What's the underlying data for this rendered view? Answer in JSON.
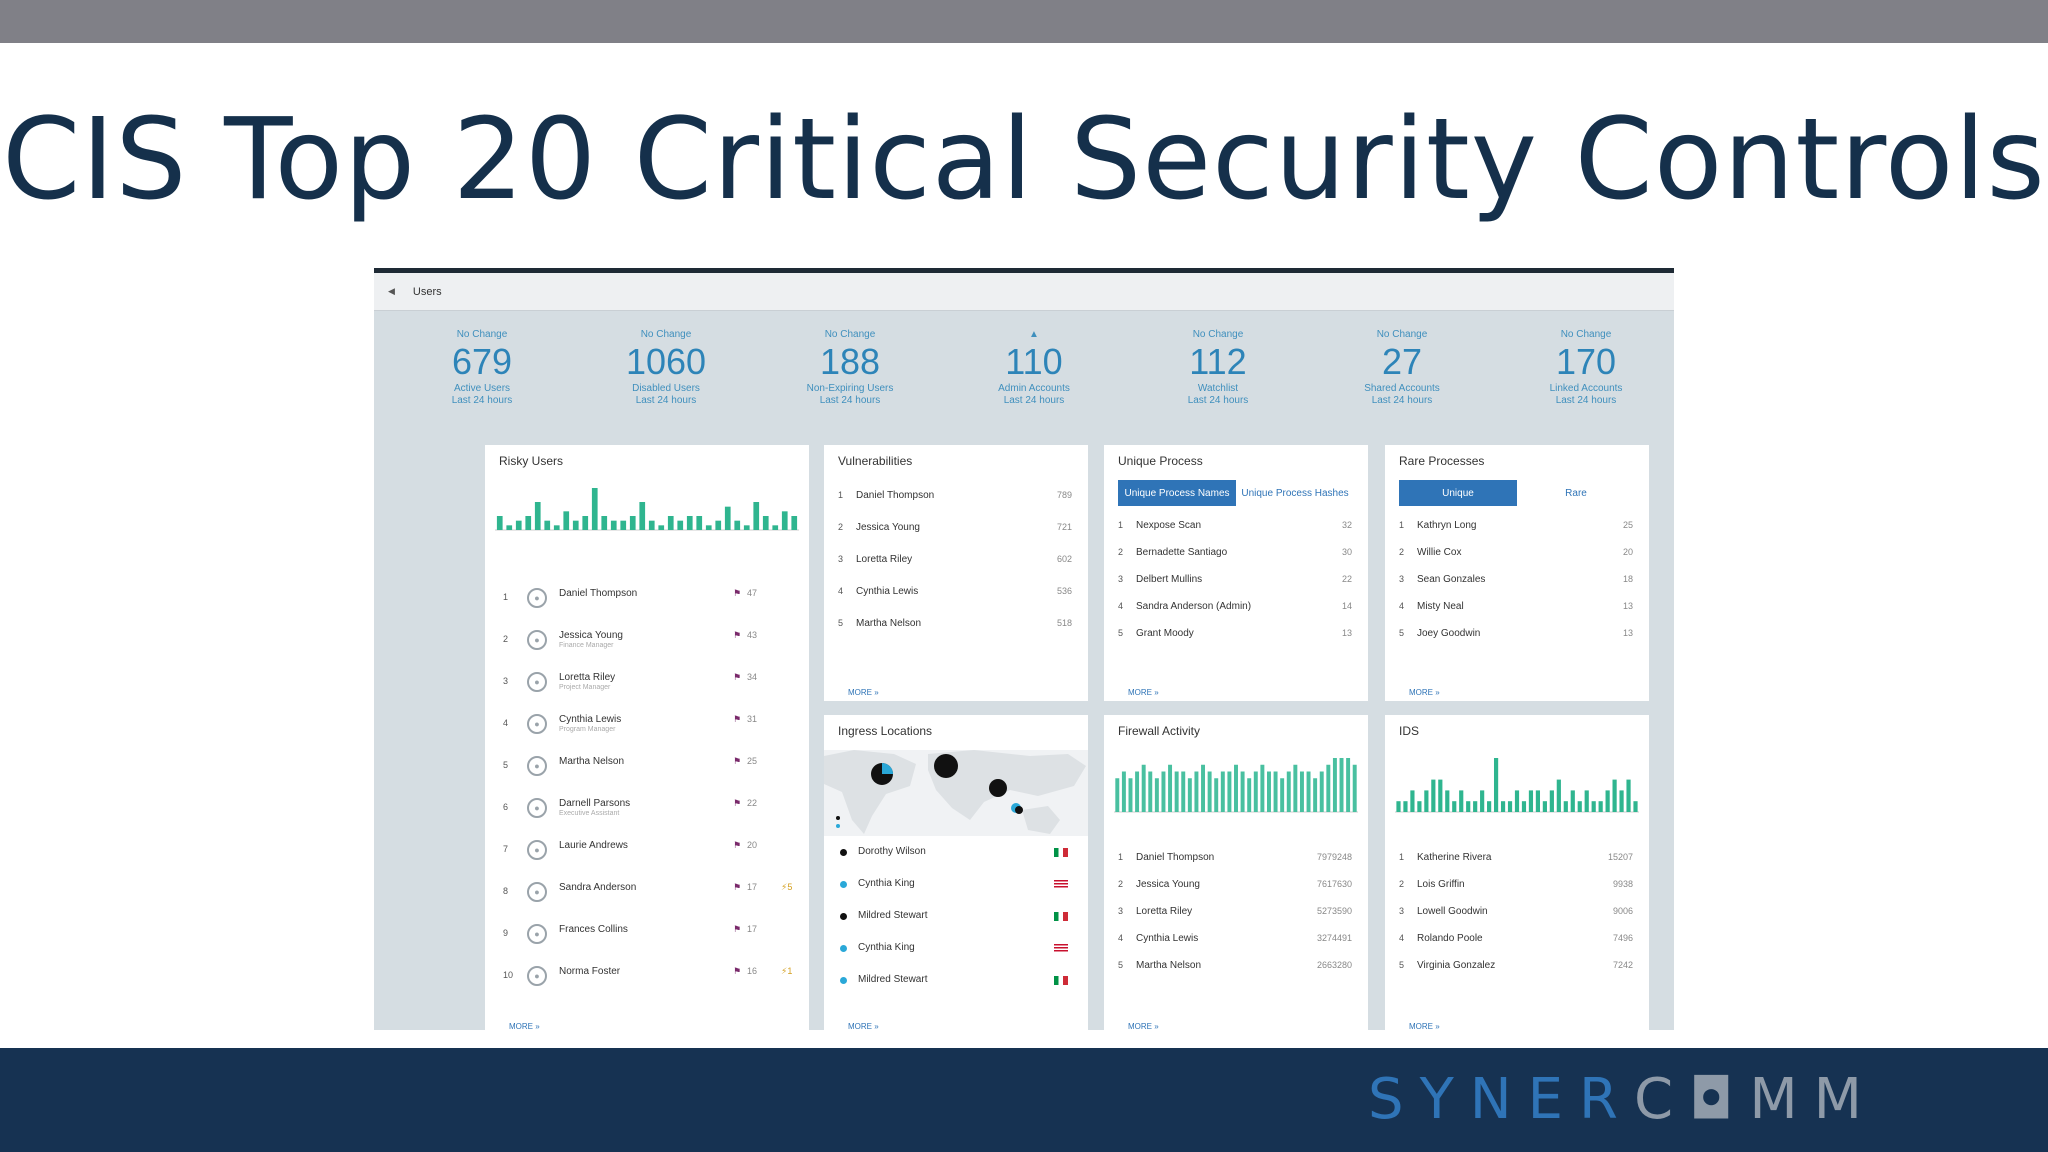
{
  "slide": {
    "title": "CIS Top 20 Critical Security Controls",
    "logo_part_a": "SYNER",
    "logo_part_b": "C◘MM"
  },
  "dashboard": {
    "header": {
      "back_icon": "chevron-left-icon",
      "title": "Users"
    },
    "stats": [
      {
        "change": "No Change",
        "value": "679",
        "label1": "Active Users",
        "label2": "Last 24 hours"
      },
      {
        "change": "No Change",
        "value": "1060",
        "label1": "Disabled Users",
        "label2": "Last 24 hours"
      },
      {
        "change": "No Change",
        "value": "188",
        "label1": "Non-Expiring Users",
        "label2": "Last 24 hours"
      },
      {
        "change": "▲",
        "value": "110",
        "label1": "Admin Accounts",
        "label2": "Last 24 hours"
      },
      {
        "change": "No Change",
        "value": "112",
        "label1": "Watchlist",
        "label2": "Last 24 hours"
      },
      {
        "change": "No Change",
        "value": "27",
        "label1": "Shared Accounts",
        "label2": "Last 24 hours"
      },
      {
        "change": "No Change",
        "value": "170",
        "label1": "Linked Accounts",
        "label2": "Last 24 hours"
      }
    ],
    "risky_users": {
      "title": "Risky Users",
      "more": "MORE »",
      "chart_values": [
        3,
        1,
        2,
        3,
        6,
        2,
        1,
        4,
        2,
        3,
        9,
        3,
        2,
        2,
        3,
        6,
        2,
        1,
        3,
        2,
        3,
        3,
        1,
        2,
        5,
        2,
        1,
        6,
        3,
        1,
        4,
        3
      ],
      "rows": [
        {
          "num": "1",
          "name": "Daniel Thompson",
          "score": "47",
          "bolt": ""
        },
        {
          "num": "2",
          "name": "Jessica Young",
          "sub": "Finance Manager",
          "score": "43",
          "bolt": ""
        },
        {
          "num": "3",
          "name": "Loretta Riley",
          "sub": "Project Manager",
          "score": "34",
          "bolt": ""
        },
        {
          "num": "4",
          "name": "Cynthia Lewis",
          "sub": "Program Manager",
          "score": "31",
          "bolt": ""
        },
        {
          "num": "5",
          "name": "Martha Nelson",
          "score": "25",
          "bolt": ""
        },
        {
          "num": "6",
          "name": "Darnell Parsons",
          "sub": "Executive Assistant",
          "score": "22",
          "bolt": ""
        },
        {
          "num": "7",
          "name": "Laurie Andrews",
          "score": "20",
          "bolt": ""
        },
        {
          "num": "8",
          "name": "Sandra Anderson",
          "score": "17",
          "bolt": "⚡5"
        },
        {
          "num": "9",
          "name": "Frances Collins",
          "score": "17",
          "bolt": ""
        },
        {
          "num": "10",
          "name": "Norma Foster",
          "score": "16",
          "bolt": "⚡1"
        }
      ]
    },
    "vulnerabilities": {
      "title": "Vulnerabilities",
      "more": "MORE »",
      "rows": [
        {
          "num": "1",
          "name": "Daniel Thompson",
          "value": "789"
        },
        {
          "num": "2",
          "name": "Jessica Young",
          "value": "721"
        },
        {
          "num": "3",
          "name": "Loretta Riley",
          "value": "602"
        },
        {
          "num": "4",
          "name": "Cynthia Lewis",
          "value": "536"
        },
        {
          "num": "5",
          "name": "Martha Nelson",
          "value": "518"
        }
      ]
    },
    "unique_process": {
      "title": "Unique Process",
      "tab_a": "Unique Process Names",
      "tab_b": "Unique Process Hashes",
      "more": "MORE »",
      "rows": [
        {
          "num": "1",
          "name": "Nexpose Scan",
          "value": "32"
        },
        {
          "num": "2",
          "name": "Bernadette Santiago",
          "value": "30"
        },
        {
          "num": "3",
          "name": "Delbert Mullins",
          "value": "22"
        },
        {
          "num": "4",
          "name": "Sandra Anderson (Admin)",
          "value": "14"
        },
        {
          "num": "5",
          "name": "Grant Moody",
          "value": "13"
        }
      ]
    },
    "rare_processes": {
      "title": "Rare Processes",
      "tab_a": "Unique",
      "tab_b": "Rare",
      "more": "MORE »",
      "rows": [
        {
          "num": "1",
          "name": "Kathryn Long",
          "value": "25"
        },
        {
          "num": "2",
          "name": "Willie Cox",
          "value": "20"
        },
        {
          "num": "3",
          "name": "Sean Gonzales",
          "value": "18"
        },
        {
          "num": "4",
          "name": "Misty Neal",
          "value": "13"
        },
        {
          "num": "5",
          "name": "Joey Goodwin",
          "value": "13"
        }
      ]
    },
    "ingress": {
      "title": "Ingress Locations",
      "more": "MORE »",
      "rows": [
        {
          "name": "Dorothy Wilson",
          "dot": "#111111",
          "flag": "it"
        },
        {
          "name": "Cynthia King",
          "dot": "#2aa8d8",
          "flag": "us"
        },
        {
          "name": "Mildred Stewart",
          "dot": "#111111",
          "flag": "it"
        },
        {
          "name": "Cynthia King",
          "dot": "#2aa8d8",
          "flag": "us"
        },
        {
          "name": "Mildred Stewart",
          "dot": "#2aa8d8",
          "flag": "it"
        }
      ]
    },
    "firewall": {
      "title": "Firewall Activity",
      "more": "MORE »",
      "chart_values": [
        5,
        6,
        5,
        6,
        7,
        6,
        5,
        6,
        7,
        6,
        6,
        5,
        6,
        7,
        6,
        5,
        6,
        6,
        7,
        6,
        5,
        6,
        7,
        6,
        6,
        5,
        6,
        7,
        6,
        6,
        5,
        6,
        7,
        8,
        8,
        8,
        7
      ],
      "rows": [
        {
          "num": "1",
          "name": "Daniel Thompson",
          "value": "7979248"
        },
        {
          "num": "2",
          "name": "Jessica Young",
          "value": "7617630"
        },
        {
          "num": "3",
          "name": "Loretta Riley",
          "value": "5273590"
        },
        {
          "num": "4",
          "name": "Cynthia Lewis",
          "value": "3274491"
        },
        {
          "num": "5",
          "name": "Martha Nelson",
          "value": "2663280"
        }
      ]
    },
    "ids": {
      "title": "IDS",
      "more": "MORE »",
      "chart_values": [
        1,
        1,
        2,
        1,
        2,
        3,
        3,
        2,
        1,
        2,
        1,
        1,
        2,
        1,
        5,
        1,
        1,
        2,
        1,
        2,
        2,
        1,
        2,
        3,
        1,
        2,
        1,
        2,
        1,
        1,
        2,
        3,
        2,
        3,
        1
      ],
      "rows": [
        {
          "num": "1",
          "name": "Katherine Rivera",
          "value": "15207"
        },
        {
          "num": "2",
          "name": "Lois Griffin",
          "value": "9938"
        },
        {
          "num": "3",
          "name": "Lowell Goodwin",
          "value": "9006"
        },
        {
          "num": "4",
          "name": "Rolando Poole",
          "value": "7496"
        },
        {
          "num": "5",
          "name": "Virginia Gonzalez",
          "value": "7242"
        }
      ]
    }
  }
}
